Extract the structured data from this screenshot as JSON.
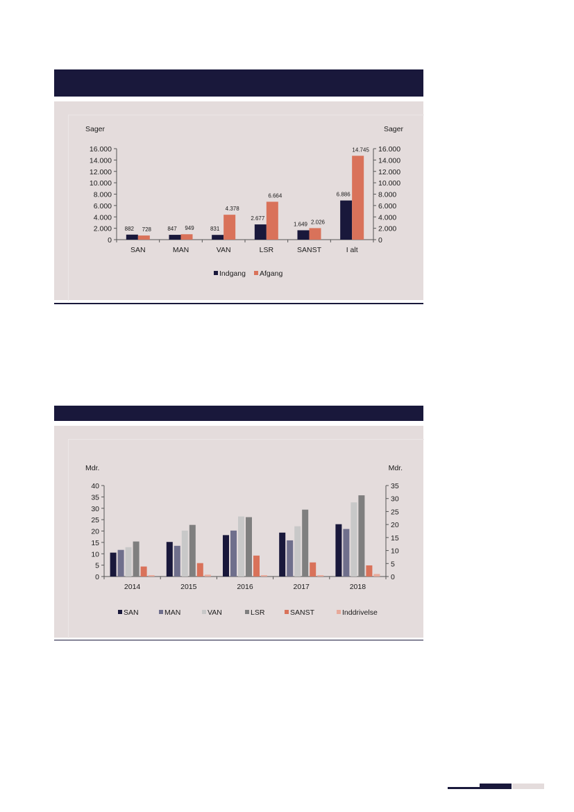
{
  "chart_data": [
    {
      "type": "bar",
      "title": "",
      "ylabel_left": "Sager",
      "ylabel_right": "Sager",
      "ylim": [
        0,
        16000
      ],
      "yticks": [
        0,
        2000,
        4000,
        6000,
        8000,
        10000,
        12000,
        14000,
        16000
      ],
      "ytick_labels": [
        "0",
        "2.000",
        "4.000",
        "6.000",
        "8.000",
        "10.000",
        "12.000",
        "14.000",
        "16.000"
      ],
      "categories": [
        "SAN",
        "MAN",
        "VAN",
        "LSR",
        "SANST",
        "I alt"
      ],
      "series": [
        {
          "name": "Indgang",
          "color": "#19183b",
          "values": [
            882,
            847,
            831,
            2677,
            1649,
            6886
          ],
          "labels": [
            "882",
            "847",
            "831",
            "2.677",
            "1.649",
            "6.886"
          ]
        },
        {
          "name": "Afgang",
          "color": "#d9725a",
          "values": [
            728,
            949,
            4378,
            6664,
            2026,
            14745
          ],
          "labels": [
            "728",
            "949",
            "4.378",
            "6.664",
            "2.026",
            "14.745"
          ]
        }
      ],
      "legend": "bottom-center",
      "grid": false
    },
    {
      "type": "bar",
      "title": "",
      "ylabel_left": "Mdr.",
      "ylabel_right": "Mdr.",
      "ylim_left": [
        0,
        40
      ],
      "ylim_right": [
        0,
        35
      ],
      "yticks_left": [
        "0",
        "5",
        "10",
        "15",
        "20",
        "25",
        "30",
        "35",
        "40"
      ],
      "yticks_right": [
        "0",
        "5",
        "10",
        "15",
        "20",
        "25",
        "30",
        "35"
      ],
      "categories": [
        "2014",
        "2015",
        "2016",
        "2017",
        "2018"
      ],
      "series": [
        {
          "name": "SAN",
          "color": "#19183b",
          "values": [
            10.5,
            15.2,
            18.2,
            19.3,
            23.0
          ]
        },
        {
          "name": "MAN",
          "color": "#6f6f8c",
          "values": [
            11.7,
            13.5,
            20.2,
            15.9,
            20.9
          ]
        },
        {
          "name": "VAN",
          "color": "#c8c8c8",
          "values": [
            12.9,
            20.2,
            26.4,
            22.1,
            32.6
          ]
        },
        {
          "name": "LSR",
          "color": "#7f7f7f",
          "values": [
            15.4,
            22.7,
            26.1,
            29.4,
            35.7
          ]
        },
        {
          "name": "SANST",
          "color": "#d9725a",
          "values": [
            4.4,
            5.9,
            9.2,
            6.2,
            4.9
          ]
        },
        {
          "name": "Inddrivelse",
          "color": "#e8a99a",
          "values": [
            0.6,
            0.8,
            0.6,
            0.6,
            1.1
          ]
        }
      ],
      "legend": "bottom-center",
      "grid": false
    }
  ],
  "colors": {
    "navy": "#19183b",
    "panel": "#e4dcdc",
    "page_mark_light": "#e4dcdc"
  }
}
